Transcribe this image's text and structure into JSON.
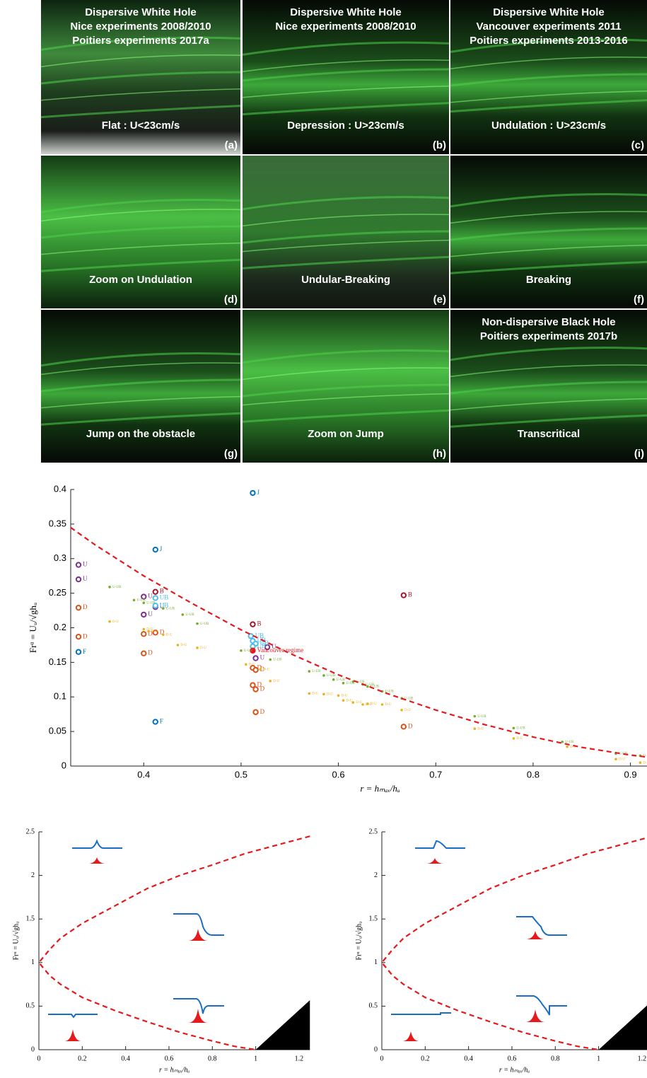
{
  "panels": [
    {
      "lines": [
        "Dispersive White Hole",
        "Nice experiments 2008/2010",
        "Poitiers experiments 2017a"
      ],
      "caption": "Flat : U<23cm/s",
      "tag": "(a)"
    },
    {
      "lines": [
        "Dispersive White Hole",
        "Nice experiments 2008/2010"
      ],
      "caption": "Depression : U>23cm/s",
      "tag": "(b)"
    },
    {
      "lines": [
        "Dispersive White Hole",
        "Vancouver experiments 2011",
        "Poitiers experiments 2013-2016"
      ],
      "caption": "Undulation : U>23cm/s",
      "tag": "(c)"
    },
    {
      "lines": [],
      "caption": "Zoom on Undulation",
      "tag": "(d)"
    },
    {
      "lines": [],
      "caption": "Undular-Breaking",
      "tag": "(e)"
    },
    {
      "lines": [],
      "caption": "Breaking",
      "tag": "(f)"
    },
    {
      "lines": [],
      "caption": "Jump on the obstacle",
      "tag": "(g)"
    },
    {
      "lines": [],
      "caption": "Zoom on Jump",
      "tag": "(h)"
    },
    {
      "lines": [
        "Non-dispersive Black Hole",
        "Poitiers experiments 2017b"
      ],
      "caption": "Transcritical",
      "tag": "(i)"
    }
  ],
  "chart_data": [
    {
      "type": "scatter",
      "xlabel": "r = hₘₐₓ/hᵤ",
      "ylabel": "Frᵘ = Uᵤ/√ghᵤ",
      "xlim": [
        0.325,
        0.917
      ],
      "ylim": [
        0,
        0.4
      ],
      "xticks": [
        0.4,
        0.5,
        0.6,
        0.7,
        0.8,
        0.9
      ],
      "yticks": [
        0,
        0.05,
        0.1,
        0.15,
        0.2,
        0.25,
        0.3,
        0.35,
        0.4
      ],
      "series": [
        {
          "name": "J",
          "color": "#0072bd",
          "x": [
            0.512,
            0.412
          ],
          "values": [
            0.395,
            0.313
          ]
        },
        {
          "name": "U",
          "color": "#7e2f8e",
          "x": [
            0.333,
            0.333,
            0.4,
            0.412,
            0.4,
            0.527,
            0.515
          ],
          "values": [
            0.291,
            0.27,
            0.245,
            0.23,
            0.219,
            0.172,
            0.156
          ]
        },
        {
          "name": "B",
          "color": "#a2142f",
          "x": [
            0.412,
            0.667,
            0.512
          ],
          "values": [
            0.252,
            0.247,
            0.205
          ]
        },
        {
          "name": "UB",
          "color": "#4dbeee",
          "x": [
            0.412,
            0.412,
            0.51,
            0.512,
            0.515,
            0.512
          ],
          "values": [
            0.243,
            0.232,
            0.188,
            0.181,
            0.177,
            0.173
          ]
        },
        {
          "name": "D",
          "color": "#d95319",
          "x": [
            0.333,
            0.333,
            0.4,
            0.412,
            0.4,
            0.512,
            0.515,
            0.512,
            0.515,
            0.515,
            0.667
          ],
          "values": [
            0.229,
            0.187,
            0.191,
            0.193,
            0.163,
            0.142,
            0.139,
            0.117,
            0.111,
            0.078,
            0.057
          ]
        },
        {
          "name": "F",
          "color": "#0072bd",
          "x": [
            0.333,
            0.412
          ],
          "values": [
            0.165,
            0.064
          ]
        },
        {
          "name": "Vancouver regime",
          "color": "#e41a1c",
          "x": [
            0.512
          ],
          "values": [
            0.167
          ]
        },
        {
          "name": "U-UB",
          "color": "#77ac30",
          "small": true,
          "x": [
            0.365,
            0.39,
            0.4,
            0.42,
            0.44,
            0.455,
            0.5,
            0.53,
            0.57,
            0.585,
            0.595,
            0.605,
            0.615,
            0.625,
            0.63,
            0.645,
            0.665,
            0.74,
            0.78,
            0.83,
            0.885,
            0.91
          ],
          "values": [
            0.259,
            0.24,
            0.236,
            0.228,
            0.219,
            0.206,
            0.167,
            0.154,
            0.137,
            0.131,
            0.125,
            0.12,
            0.122,
            0.118,
            0.115,
            0.108,
            0.098,
            0.072,
            0.055,
            0.035,
            0.018,
            0.015
          ]
        },
        {
          "name": "D-U",
          "color": "#edb120",
          "small": true,
          "x": [
            0.365,
            0.4,
            0.405,
            0.42,
            0.435,
            0.455,
            0.505,
            0.52,
            0.53,
            0.57,
            0.585,
            0.6,
            0.605,
            0.615,
            0.625,
            0.63,
            0.645,
            0.665,
            0.74,
            0.78,
            0.835,
            0.885,
            0.91
          ],
          "values": [
            0.209,
            0.198,
            0.195,
            0.19,
            0.175,
            0.171,
            0.147,
            0.14,
            0.123,
            0.105,
            0.104,
            0.102,
            0.095,
            0.092,
            0.089,
            0.09,
            0.089,
            0.081,
            0.054,
            0.04,
            0.028,
            0.01,
            0.005
          ]
        },
        {
          "color": "#e41a1c",
          "dashed": true,
          "x": [
            0.325,
            0.35,
            0.4,
            0.45,
            0.5,
            0.55,
            0.6,
            0.65,
            0.7,
            0.75,
            0.8,
            0.85,
            0.9,
            0.917
          ],
          "values": [
            0.345,
            0.32,
            0.275,
            0.235,
            0.197,
            0.163,
            0.132,
            0.105,
            0.081,
            0.06,
            0.042,
            0.027,
            0.016,
            0.013
          ]
        }
      ]
    },
    {
      "type": "line",
      "xlabel": "r = hₘₐₓ/hᵤ",
      "ylabel": "Frᵘ = Uᵤ/√ghᵤ",
      "xlim": [
        0,
        1.25
      ],
      "ylim": [
        0,
        2.5
      ],
      "xticks": [
        0,
        0.2,
        0.4,
        0.6,
        0.8,
        1,
        1.2
      ],
      "yticks": [
        0,
        0.5,
        1,
        1.5,
        2,
        2.5
      ],
      "series": [
        {
          "color": "#e41a1c",
          "dashed": true,
          "x": [
            1.25,
            1.1,
            0.95,
            0.8,
            0.65,
            0.5,
            0.35,
            0.2,
            0.1,
            0.05,
            0,
            0.05,
            0.1,
            0.2,
            0.35,
            0.5,
            0.65,
            0.8,
            0.9,
            1
          ],
          "values": [
            2.45,
            2.35,
            2.25,
            2.12,
            2.0,
            1.85,
            1.65,
            1.45,
            1.28,
            1.15,
            1,
            0.85,
            0.75,
            0.6,
            0.45,
            0.32,
            0.2,
            0.1,
            0.04,
            0
          ]
        }
      ]
    },
    {
      "type": "line",
      "xlabel": "r = hₘₐₓ/hᵤ",
      "ylabel": "Frᵘ = Uᵤ/√ghᵤ",
      "xlim": [
        0,
        1.25
      ],
      "ylim": [
        0,
        2.5
      ],
      "xticks": [
        0,
        0.2,
        0.4,
        0.6,
        0.8,
        1,
        1.2
      ],
      "yticks": [
        0,
        0.5,
        1,
        1.5,
        2,
        2.5
      ],
      "series": [
        {
          "color": "#e41a1c",
          "dashed": true,
          "x": [
            1.25,
            1.1,
            0.95,
            0.8,
            0.65,
            0.5,
            0.35,
            0.2,
            0.1,
            0.05,
            0,
            0.05,
            0.1,
            0.2,
            0.35,
            0.5,
            0.65,
            0.8,
            0.9,
            1
          ],
          "values": [
            2.45,
            2.35,
            2.25,
            2.12,
            2.0,
            1.85,
            1.65,
            1.45,
            1.28,
            1.15,
            1,
            0.85,
            0.75,
            0.6,
            0.45,
            0.32,
            0.2,
            0.1,
            0.04,
            0
          ]
        }
      ]
    }
  ]
}
